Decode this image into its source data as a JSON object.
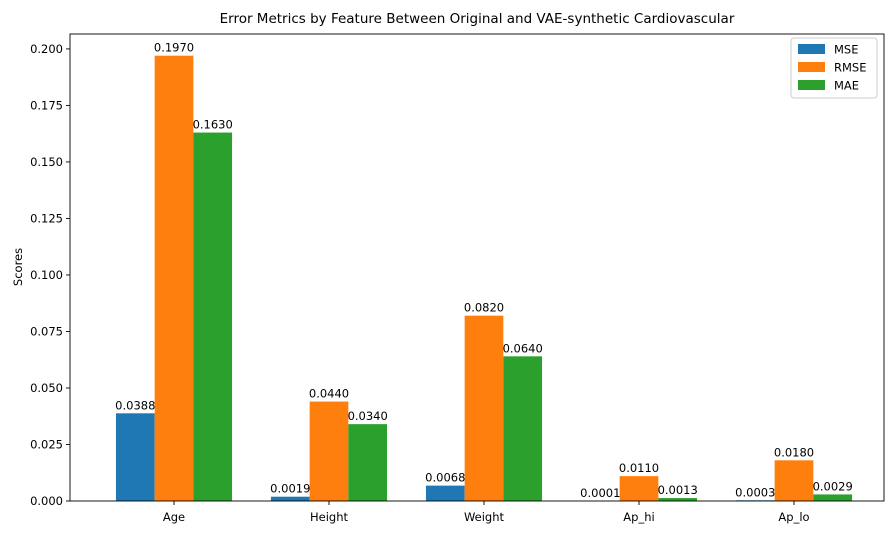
{
  "chart_data": {
    "type": "bar",
    "title": "Error Metrics by Feature Between Original and VAE-synthetic Cardiovascular",
    "xlabel": "",
    "ylabel": "Scores",
    "categories": [
      "Age",
      "Height",
      "Weight",
      "Ap_hi",
      "Ap_lo"
    ],
    "series": [
      {
        "name": "MSE",
        "color": "#1f77b4",
        "values": [
          0.0388,
          0.0019,
          0.0068,
          0.0001,
          0.0003
        ],
        "labels": [
          "0.0388",
          "0.0019",
          "0.0068",
          "0.0001",
          "0.0003"
        ]
      },
      {
        "name": "RMSE",
        "color": "#ff7f0e",
        "values": [
          0.197,
          0.044,
          0.082,
          0.011,
          0.018
        ],
        "labels": [
          "0.1970",
          "0.0440",
          "0.0820",
          "0.0110",
          "0.0180"
        ]
      },
      {
        "name": "MAE",
        "color": "#2ca02c",
        "values": [
          0.163,
          0.034,
          0.064,
          0.0013,
          0.0029
        ],
        "labels": [
          "0.1630",
          "0.0340",
          "0.0640",
          "0.0013",
          "0.0029"
        ]
      }
    ],
    "ylim": [
      0,
      0.2066
    ],
    "yticks": [
      "0.000",
      "0.025",
      "0.050",
      "0.075",
      "0.100",
      "0.125",
      "0.150",
      "0.175",
      "0.200"
    ],
    "grid": false,
    "legend_position": "top-right"
  }
}
